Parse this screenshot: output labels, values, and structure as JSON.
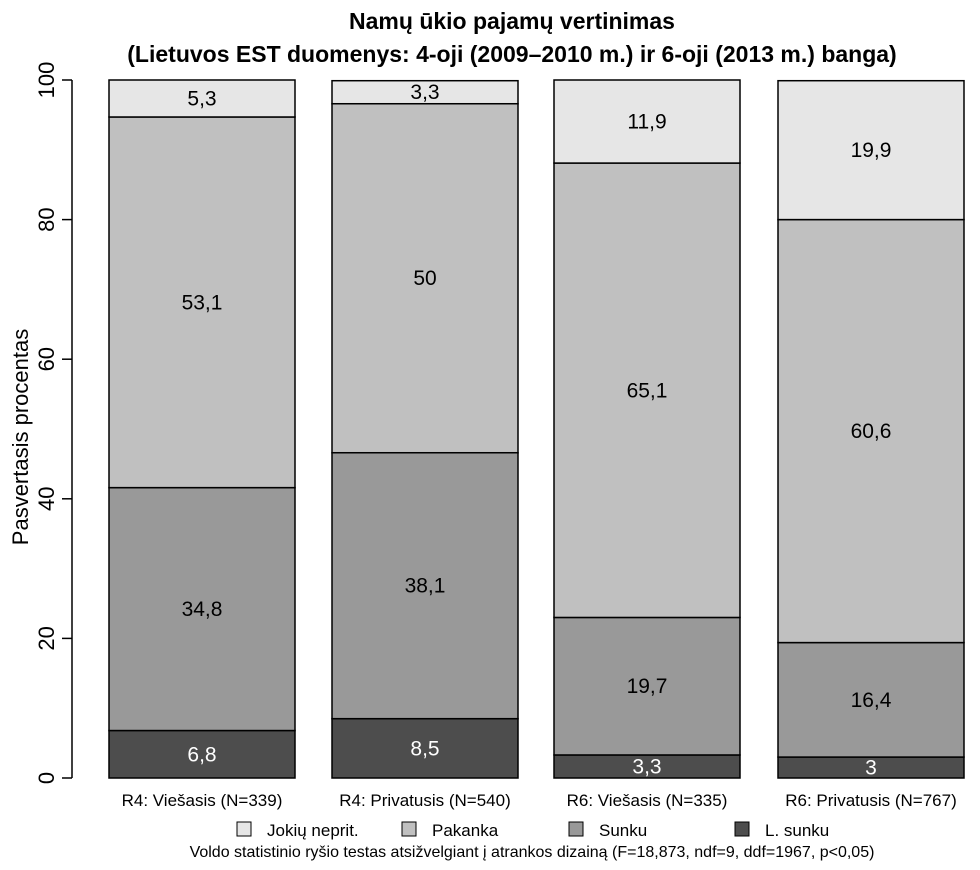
{
  "chart_data": {
    "type": "bar",
    "stacked": true,
    "title": "Namų ūkio pajamų vertinimas",
    "subtitle": "(Lietuvos EST duomenys: 4-oji (2009–2010 m.) ir 6-oji (2013 m.) banga)",
    "xlabel": "",
    "ylabel": "Pasvertasis procentas",
    "ylim": [
      0,
      100
    ],
    "yticks": [
      "0",
      "20",
      "40",
      "60",
      "80",
      "100"
    ],
    "grid": false,
    "legend_position": "bottom",
    "categories": [
      "R4: Viešasis (N=339)",
      "R4: Privatusis (N=540)",
      "R6: Viešasis (N=335)",
      "R6: Privatusis (N=767)"
    ],
    "series": [
      {
        "name": "L. sunku",
        "color": "#4d4d4d",
        "label_color": "#ffffff",
        "values": [
          6.8,
          8.5,
          3.3,
          3.0
        ],
        "labels": [
          "6,8",
          "8,5",
          "3,3",
          "3"
        ]
      },
      {
        "name": "Sunku",
        "color": "#999999",
        "label_color": "#000000",
        "values": [
          34.8,
          38.1,
          19.7,
          16.4
        ],
        "labels": [
          "34,8",
          "38,1",
          "19,7",
          "16,4"
        ]
      },
      {
        "name": "Pakanka",
        "color": "#c0c0c0",
        "label_color": "#000000",
        "values": [
          53.1,
          50.0,
          65.1,
          60.6
        ],
        "labels": [
          "53,1",
          "50",
          "65,1",
          "60,6"
        ]
      },
      {
        "name": "Jokių neprit.",
        "color": "#e6e6e6",
        "label_color": "#000000",
        "values": [
          5.3,
          3.3,
          11.9,
          19.9
        ],
        "labels": [
          "5,3",
          "3,3",
          "11,9",
          "19,9"
        ]
      }
    ],
    "legend_order": [
      "Jokių neprit.",
      "Pakanka",
      "Sunku",
      "L. sunku"
    ],
    "note": "Voldo statistinio ryšio testas atsižvelgiant į atrankos dizainą (F=18,873, ndf=9, ddf=1967, p<0,05)"
  }
}
